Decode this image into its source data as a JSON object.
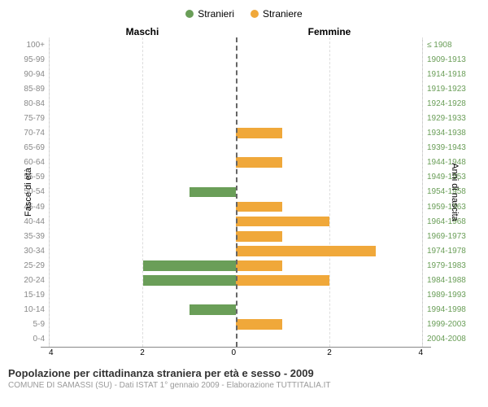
{
  "chart": {
    "type": "population-pyramid",
    "legend": [
      {
        "label": "Stranieri",
        "color": "#6a9e58"
      },
      {
        "label": "Straniere",
        "color": "#f0a83a"
      }
    ],
    "header_left": "Maschi",
    "header_right": "Femmine",
    "y_label_left": "Fasce di età",
    "y_label_right": "Anni di nascita",
    "xlim": 4,
    "xticks_left": [
      "4",
      "2",
      "0"
    ],
    "xticks_right": [
      "0",
      "2",
      "4"
    ],
    "grid_color": "#dddddd",
    "centerline_color": "#666666",
    "age_label_color": "#888888",
    "year_label_color": "#6a9e58",
    "rows": [
      {
        "age": "100+",
        "years": "≤ 1908",
        "m": 0,
        "f": 0
      },
      {
        "age": "95-99",
        "years": "1909-1913",
        "m": 0,
        "f": 0
      },
      {
        "age": "90-94",
        "years": "1914-1918",
        "m": 0,
        "f": 0
      },
      {
        "age": "85-89",
        "years": "1919-1923",
        "m": 0,
        "f": 0
      },
      {
        "age": "80-84",
        "years": "1924-1928",
        "m": 0,
        "f": 0
      },
      {
        "age": "75-79",
        "years": "1929-1933",
        "m": 0,
        "f": 0
      },
      {
        "age": "70-74",
        "years": "1934-1938",
        "m": 0,
        "f": 1
      },
      {
        "age": "65-69",
        "years": "1939-1943",
        "m": 0,
        "f": 0
      },
      {
        "age": "60-64",
        "years": "1944-1948",
        "m": 0,
        "f": 1
      },
      {
        "age": "55-59",
        "years": "1949-1953",
        "m": 0,
        "f": 0
      },
      {
        "age": "50-54",
        "years": "1954-1958",
        "m": 1,
        "f": 0
      },
      {
        "age": "45-49",
        "years": "1959-1963",
        "m": 0,
        "f": 1
      },
      {
        "age": "40-44",
        "years": "1964-1968",
        "m": 0,
        "f": 2
      },
      {
        "age": "35-39",
        "years": "1969-1973",
        "m": 0,
        "f": 1
      },
      {
        "age": "30-34",
        "years": "1974-1978",
        "m": 0,
        "f": 3
      },
      {
        "age": "25-29",
        "years": "1979-1983",
        "m": 2,
        "f": 1
      },
      {
        "age": "20-24",
        "years": "1984-1988",
        "m": 2,
        "f": 2
      },
      {
        "age": "15-19",
        "years": "1989-1993",
        "m": 0,
        "f": 0
      },
      {
        "age": "10-14",
        "years": "1994-1998",
        "m": 1,
        "f": 0
      },
      {
        "age": "5-9",
        "years": "1999-2003",
        "m": 0,
        "f": 1
      },
      {
        "age": "0-4",
        "years": "2004-2008",
        "m": 0,
        "f": 0
      }
    ]
  },
  "title": "Popolazione per cittadinanza straniera per età e sesso - 2009",
  "subtitle": "COMUNE DI SAMASSI (SU) - Dati ISTAT 1° gennaio 2009 - Elaborazione TUTTITALIA.IT"
}
